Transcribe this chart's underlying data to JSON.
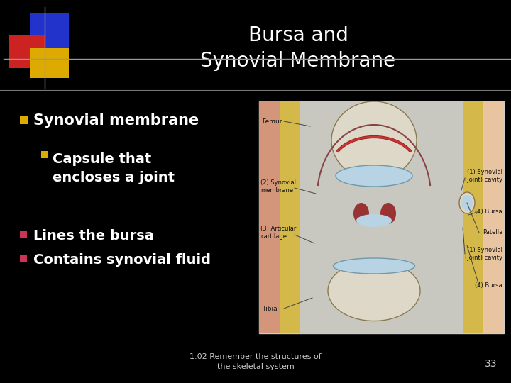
{
  "title_line1": "Bursa and",
  "title_line2": "Synovial Membrane",
  "background_color": "#000000",
  "title_color": "#ffffff",
  "text_color": "#ffffff",
  "bullet1_color": "#ddaa00",
  "bullet2_color": "#ddaa00",
  "bullet3_color": "#cc3355",
  "bullet4_color": "#cc3355",
  "divider_color": "#888888",
  "bullet1_text": "Synovial membrane",
  "bullet2_text": "Capsule that\nencloses a joint",
  "bullet3_text": "Lines the bursa",
  "bullet4_text": "Contains synovial fluid",
  "footer_text": "1.02 Remember the structures of\nthe skeletal system",
  "page_number": "33",
  "title_fontsize": 20,
  "bullet1_fontsize": 15,
  "bullet2_fontsize": 14,
  "bullet34_fontsize": 14,
  "footer_fontsize": 8
}
